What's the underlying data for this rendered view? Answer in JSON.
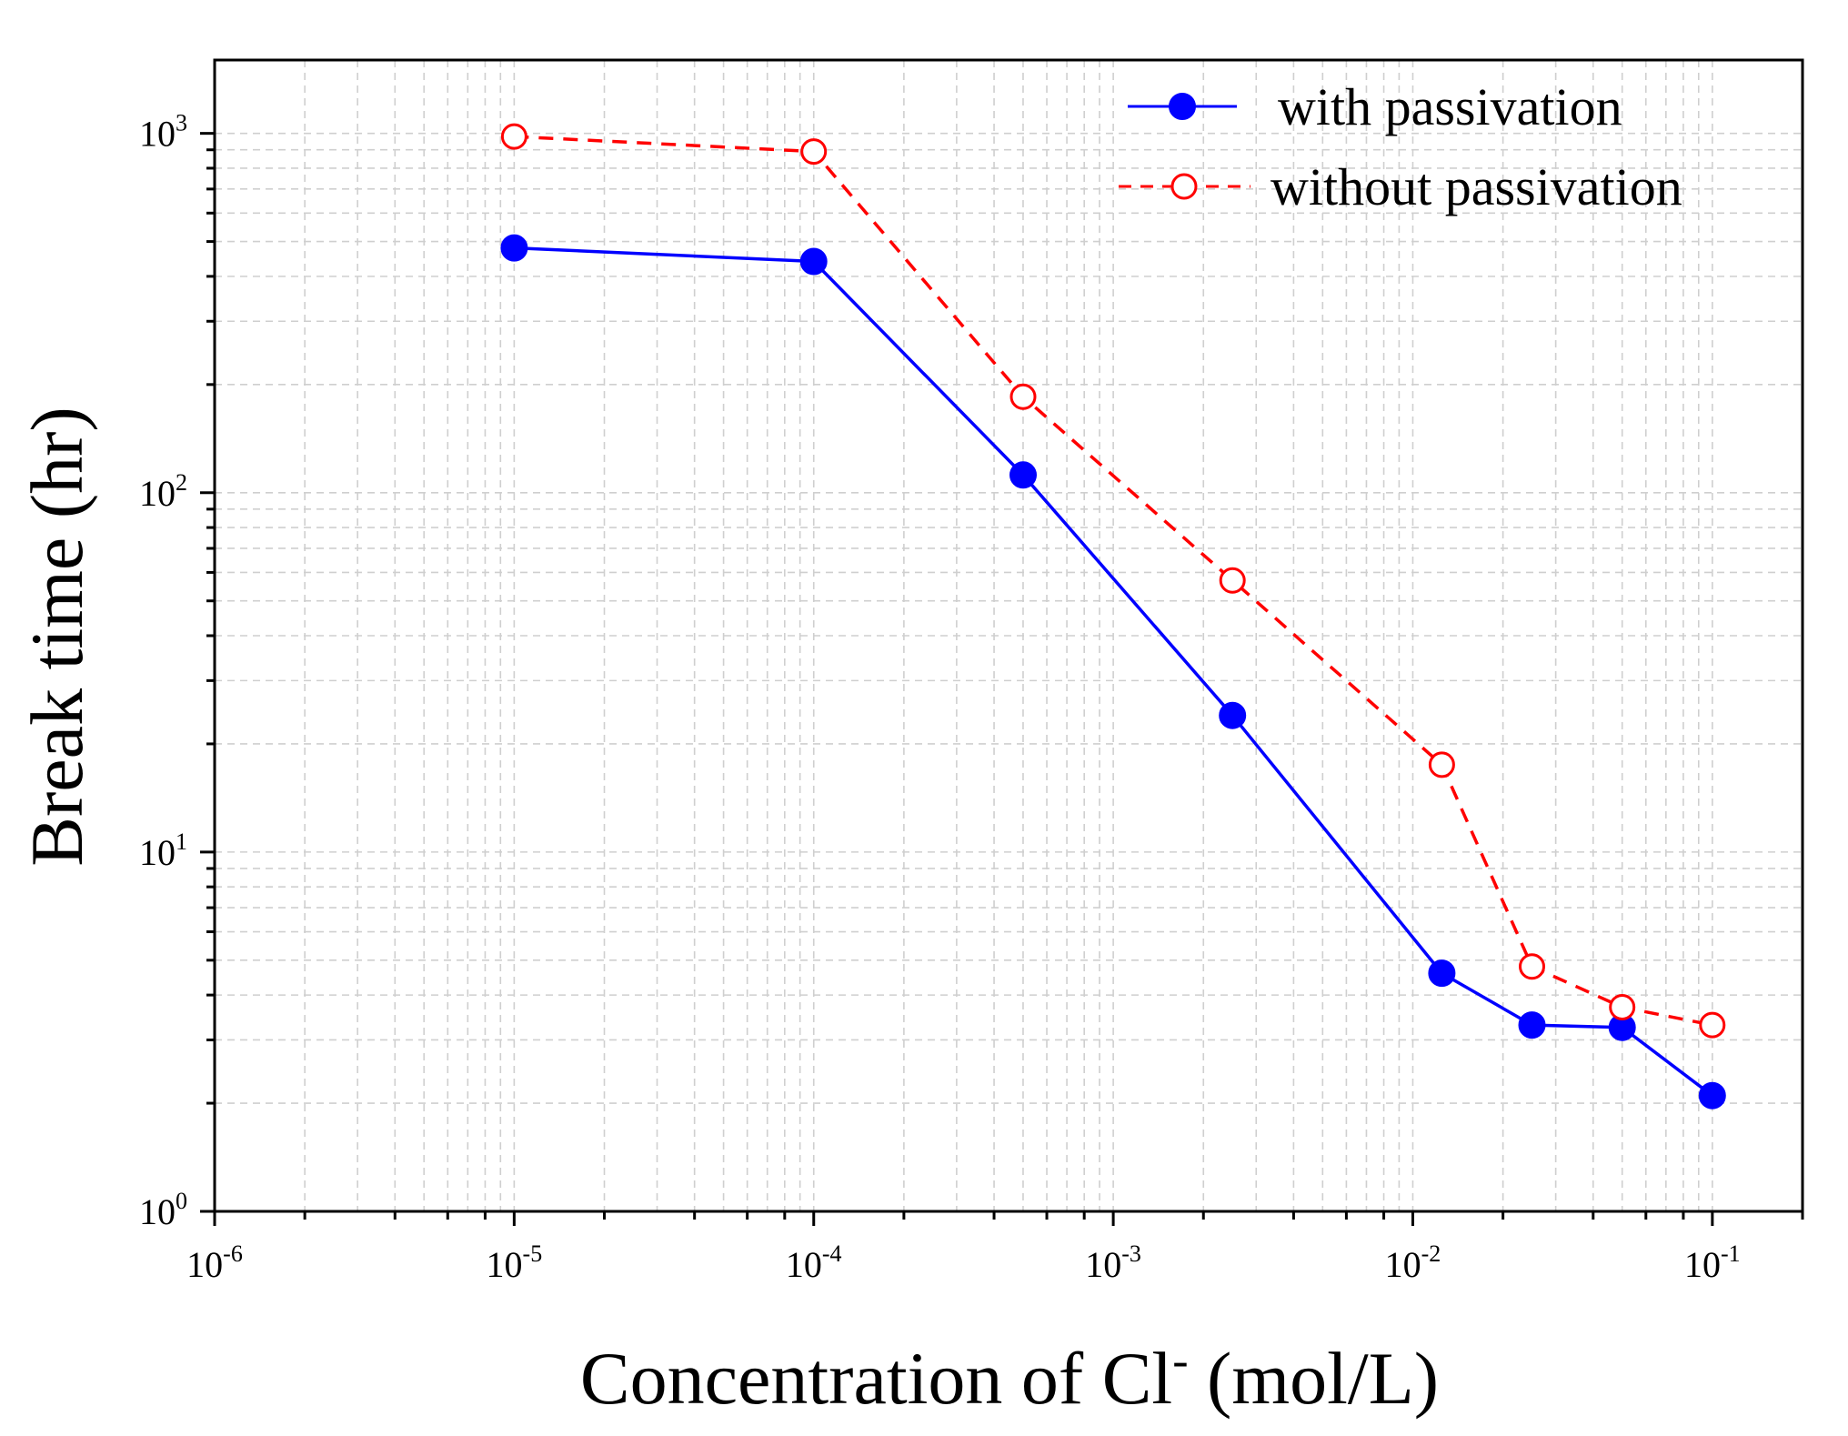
{
  "chart_data": {
    "type": "line",
    "title": "",
    "xlabel": {
      "prefix": "Concentration of Cl",
      "superscript": "-",
      "suffix": " (mol/L)"
    },
    "ylabel": "Break time (hr)",
    "xscale": "log",
    "yscale": "log",
    "xlim": [
      1e-06,
      0.2
    ],
    "ylim": [
      1,
      1600
    ],
    "grid": true,
    "legend_position": "top-right",
    "x_ticks": [
      {
        "value": 1e-06,
        "base": "10",
        "exp": "-6"
      },
      {
        "value": 1e-05,
        "base": "10",
        "exp": "-5"
      },
      {
        "value": 0.0001,
        "base": "10",
        "exp": "-4"
      },
      {
        "value": 0.001,
        "base": "10",
        "exp": "-3"
      },
      {
        "value": 0.01,
        "base": "10",
        "exp": "-2"
      },
      {
        "value": 0.1,
        "base": "10",
        "exp": "-1"
      }
    ],
    "y_ticks": [
      {
        "value": 1,
        "base": "10",
        "exp": "0"
      },
      {
        "value": 10,
        "base": "10",
        "exp": "1"
      },
      {
        "value": 100,
        "base": "10",
        "exp": "2"
      },
      {
        "value": 1000,
        "base": "10",
        "exp": "3"
      }
    ],
    "series": [
      {
        "name": "with passivation",
        "color": "#0000ff",
        "line_style": "solid",
        "marker": "filled-circle",
        "x": [
          1e-05,
          0.0001,
          0.0005,
          0.0025,
          0.0125,
          0.025,
          0.05,
          0.1
        ],
        "y": [
          480,
          440,
          112,
          24,
          4.6,
          3.3,
          3.25,
          2.1
        ]
      },
      {
        "name": "without passivation",
        "color": "#ff0000",
        "line_style": "dashed",
        "marker": "open-circle",
        "x": [
          1e-05,
          0.0001,
          0.0005,
          0.0025,
          0.0125,
          0.025,
          0.05,
          0.1
        ],
        "y": [
          980,
          890,
          185,
          57,
          17.5,
          4.8,
          3.7,
          3.3
        ]
      }
    ]
  }
}
